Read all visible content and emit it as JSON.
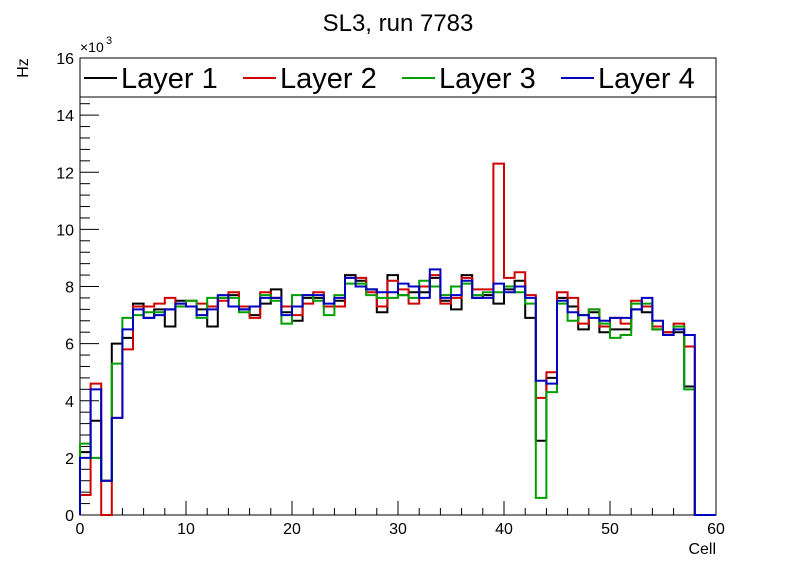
{
  "chart_data": {
    "type": "step",
    "title": "SL3, run 7783",
    "xlabel": "Cell",
    "ylabel": "Hz",
    "y_multiplier_label": "×10",
    "y_multiplier_exponent": "3",
    "xlim": [
      0,
      60
    ],
    "ylim": [
      0,
      16
    ],
    "x_ticks": [
      0,
      10,
      20,
      30,
      40,
      50,
      60
    ],
    "y_ticks": [
      0,
      2,
      4,
      6,
      8,
      10,
      12,
      14,
      16
    ],
    "bin_width": 1,
    "legend_position": "top",
    "series": [
      {
        "name": "Layer 1",
        "color": "#000000",
        "values": [
          2.2,
          3.3,
          1.2,
          6.0,
          6.2,
          7.4,
          6.9,
          7.2,
          6.6,
          7.5,
          7.3,
          7.2,
          6.6,
          7.6,
          7.7,
          7.2,
          7.0,
          7.4,
          7.9,
          7.1,
          6.8,
          7.6,
          7.6,
          7.3,
          7.5,
          8.4,
          8.2,
          7.9,
          7.1,
          8.4,
          7.7,
          7.8,
          7.8,
          8.3,
          7.5,
          7.2,
          8.4,
          7.6,
          7.7,
          7.4,
          7.9,
          8.2,
          6.9,
          2.6,
          4.8,
          7.6,
          7.3,
          6.5,
          7.1,
          6.4,
          6.5,
          6.5,
          7.2,
          7.1,
          6.5,
          6.4,
          6.4,
          4.5,
          0.0,
          0.0
        ]
      },
      {
        "name": "Layer 2",
        "color": "#d00000",
        "values": [
          0.7,
          4.6,
          0.0,
          3.4,
          5.8,
          7.3,
          7.3,
          7.4,
          7.6,
          7.4,
          7.5,
          7.4,
          7.3,
          7.5,
          7.8,
          7.3,
          6.9,
          7.8,
          7.6,
          7.3,
          7.0,
          7.4,
          7.8,
          7.3,
          7.3,
          8.3,
          8.3,
          7.8,
          7.3,
          8.2,
          7.9,
          7.4,
          8.0,
          8.4,
          7.4,
          7.6,
          8.3,
          7.9,
          7.9,
          12.3,
          8.3,
          8.5,
          7.7,
          4.1,
          5.0,
          7.8,
          7.6,
          6.7,
          7.2,
          6.6,
          6.9,
          6.7,
          7.5,
          7.3,
          6.6,
          6.4,
          6.7,
          5.9,
          0.0,
          0.0
        ]
      },
      {
        "name": "Layer 3",
        "color": "#00a000",
        "values": [
          2.5,
          2.0,
          1.2,
          5.3,
          6.9,
          7.0,
          7.1,
          7.1,
          7.2,
          7.3,
          7.5,
          6.9,
          7.6,
          7.6,
          7.6,
          7.1,
          7.3,
          7.7,
          7.5,
          6.7,
          7.7,
          7.7,
          7.5,
          7.0,
          7.7,
          8.1,
          8.1,
          7.7,
          7.6,
          7.6,
          7.7,
          7.6,
          8.2,
          8.0,
          7.7,
          8.0,
          8.1,
          7.7,
          7.8,
          7.8,
          8.0,
          7.8,
          7.4,
          0.6,
          4.3,
          7.4,
          6.8,
          7.0,
          7.2,
          6.7,
          6.2,
          6.3,
          7.4,
          7.4,
          6.5,
          6.3,
          6.6,
          4.4,
          0.0,
          0.0
        ]
      },
      {
        "name": "Layer 4",
        "color": "#0000c0",
        "values": [
          2.0,
          4.4,
          1.2,
          3.4,
          6.5,
          7.2,
          6.9,
          7.0,
          7.2,
          7.4,
          7.3,
          7.0,
          7.2,
          7.7,
          7.3,
          7.2,
          7.3,
          7.6,
          7.6,
          7.0,
          7.3,
          7.7,
          7.7,
          7.4,
          7.6,
          8.3,
          8.0,
          7.9,
          7.8,
          7.8,
          8.1,
          8.0,
          7.6,
          8.6,
          7.6,
          7.7,
          8.2,
          7.6,
          7.6,
          8.1,
          7.8,
          8.0,
          7.6,
          4.7,
          4.6,
          7.5,
          7.1,
          7.0,
          6.9,
          6.8,
          6.9,
          6.9,
          7.2,
          7.6,
          6.8,
          6.3,
          6.5,
          6.3,
          0.0,
          0.0
        ]
      }
    ]
  }
}
